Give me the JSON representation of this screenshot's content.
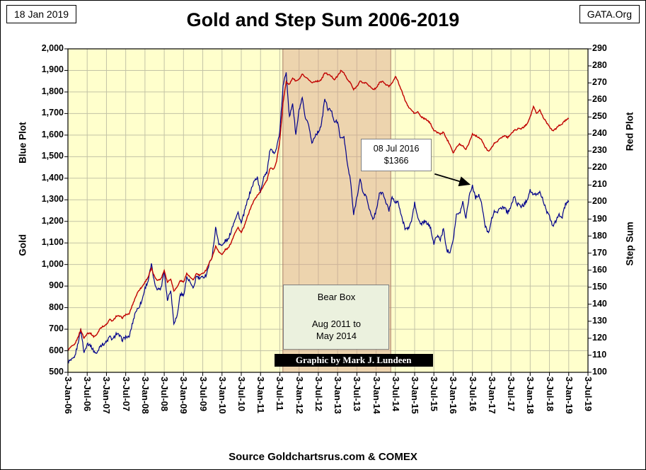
{
  "header": {
    "date": "18 Jan 2019",
    "org": "GATA.Org",
    "title": "Gold and Step Sum 2006-2019"
  },
  "footer": {
    "source": "Source Goldchartsrus.com & COMEX"
  },
  "chart_data": {
    "type": "line",
    "title": "Gold and Step Sum 2006-2019",
    "left_axis": {
      "title": "Gold",
      "plot_label": "Blue Plot",
      "min": 500,
      "max": 2000,
      "step": 100
    },
    "right_axis": {
      "title": "Step Sum",
      "plot_label": "Red Plot",
      "min": 100,
      "max": 290,
      "step": 10
    },
    "x_axis": {
      "min_year": 2006,
      "max_year": 2019.5,
      "tick_labels": [
        "3-Jan-06",
        "3-Jul-06",
        "3-Jan-07",
        "3-Jul-07",
        "3-Jan-08",
        "3-Jul-08",
        "3-Jan-09",
        "3-Jul-09",
        "3-Jan-10",
        "3-Jul-10",
        "3-Jan-11",
        "3-Jul-11",
        "3-Jan-12",
        "3-Jul-12",
        "3-Jan-13",
        "3-Jul-13",
        "3-Jan-14",
        "3-Jul-14",
        "3-Jan-15",
        "3-Jul-15",
        "3-Jan-16",
        "3-Jul-16",
        "3-Jan-17",
        "3-Jul-17",
        "3-Jan-18",
        "3-Jul-18",
        "3-Jan-19",
        "3-Jul-19"
      ]
    },
    "series": [
      {
        "name": "Gold (Blue Plot)",
        "axis": "left",
        "color": "#00008B",
        "x_start_year": 2006,
        "points_per_year": 12,
        "values": [
          550,
          555,
          565,
          625,
          700,
          590,
          635,
          625,
          600,
          585,
          625,
          630,
          640,
          665,
          650,
          680,
          670,
          650,
          665,
          660,
          720,
          780,
          800,
          830,
          890,
          925,
          1000,
          910,
          885,
          890,
          975,
          835,
          885,
          730,
          760,
          865,
          855,
          940,
          920,
          885,
          945,
          935,
          940,
          950,
          1000,
          1045,
          1170,
          1100,
          1085,
          1110,
          1115,
          1165,
          1210,
          1240,
          1190,
          1245,
          1300,
          1345,
          1385,
          1405,
          1330,
          1410,
          1430,
          1535,
          1515,
          1540,
          1615,
          1825,
          1895,
          1680,
          1750,
          1600,
          1715,
          1770,
          1670,
          1650,
          1560,
          1600,
          1615,
          1650,
          1770,
          1720,
          1715,
          1665,
          1660,
          1580,
          1595,
          1470,
          1390,
          1230,
          1310,
          1395,
          1330,
          1315,
          1250,
          1205,
          1250,
          1325,
          1335,
          1290,
          1250,
          1315,
          1290,
          1285,
          1215,
          1170,
          1165,
          1200,
          1285,
          1215,
          1185,
          1200,
          1190,
          1170,
          1095,
          1135,
          1115,
          1165,
          1065,
          1060,
          1115,
          1230,
          1235,
          1290,
          1215,
          1320,
          1366,
          1310,
          1325,
          1270,
          1175,
          1150,
          1210,
          1250,
          1245,
          1265,
          1265,
          1240,
          1270,
          1315,
          1280,
          1270,
          1275,
          1300,
          1345,
          1320,
          1325,
          1335,
          1300,
          1250,
          1220,
          1180,
          1200,
          1230,
          1220,
          1280,
          1290
        ]
      },
      {
        "name": "Step Sum (Red Plot)",
        "axis": "right",
        "color": "#C00000",
        "x_start_year": 2006,
        "points_per_year": 12,
        "values": [
          113,
          115,
          116,
          120,
          125,
          120,
          123,
          123,
          121,
          122,
          126,
          127,
          128,
          131,
          130,
          133,
          133,
          132,
          134,
          134,
          139,
          144,
          148,
          150,
          153,
          156,
          161,
          156,
          154,
          155,
          160,
          153,
          155,
          148,
          150,
          154,
          153,
          158,
          156,
          154,
          158,
          157,
          158,
          160,
          164,
          168,
          174,
          171,
          169,
          172,
          173,
          177,
          182,
          185,
          182,
          186,
          192,
          197,
          201,
          204,
          206,
          210,
          213,
          220,
          219,
          224,
          236,
          258,
          271,
          269,
          273,
          271,
          272,
          275,
          273,
          272,
          270,
          271,
          271,
          272,
          276,
          275,
          274,
          272,
          274,
          277,
          276,
          272,
          270,
          266,
          268,
          271,
          270,
          270,
          268,
          266,
          267,
          270,
          271,
          269,
          268,
          270,
          274,
          270,
          265,
          260,
          256,
          254,
          252,
          253,
          250,
          249,
          248,
          246,
          242,
          241,
          240,
          241,
          237,
          234,
          229,
          232,
          234,
          233,
          231,
          235,
          240,
          239,
          238,
          236,
          232,
          230,
          232,
          235,
          236,
          238,
          239,
          238,
          240,
          242,
          243,
          243,
          244,
          246,
          250,
          256,
          252,
          254,
          250,
          247,
          244,
          242,
          243,
          245,
          246,
          248,
          249
        ]
      }
    ],
    "bear_box": {
      "title": "Bear Box",
      "range_line1": "Aug 2011 to",
      "range_line2": "May 2014",
      "x_from": 2011.58,
      "x_to": 2014.38
    },
    "annotation": {
      "line1": "08 Jul 2016",
      "line2": "$1366",
      "target_x": 2016.42,
      "target_value": 1372
    },
    "credit": "Graphic by Mark J. Lundeen",
    "colors": {
      "plot_bg": "#FFFFCC",
      "grid": "#C3C3A6",
      "border": "#000000",
      "bear_box_fill": "rgba(214,160,138,0.45)",
      "bear_box_edge": "#A97C68"
    }
  }
}
